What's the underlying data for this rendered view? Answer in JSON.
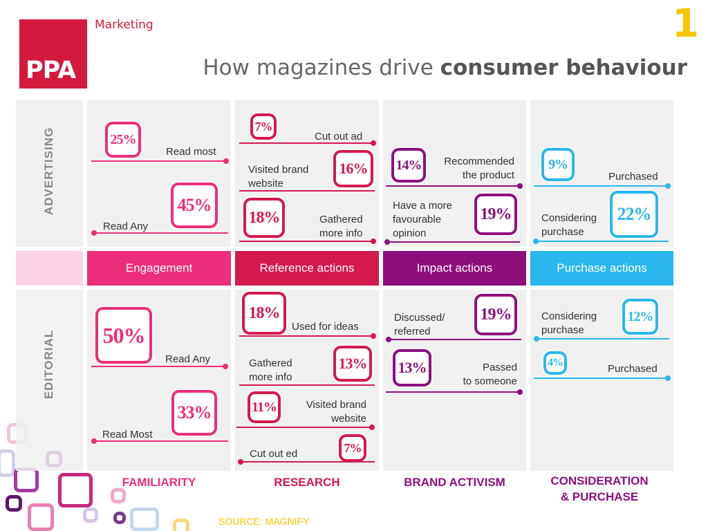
{
  "header": {
    "logo_text": "PPA",
    "subtitle": "Marketing",
    "page_number": "1",
    "title_plain": "How magazines drive ",
    "title_bold": "consumer behaviour"
  },
  "rows": {
    "advertising": "ADVERTISING",
    "editorial": "EDITORIAL"
  },
  "bands": [
    {
      "label": "Engagement",
      "color": "#ec2e7b"
    },
    {
      "label": "Reference actions",
      "color": "#d3194d"
    },
    {
      "label": "Impact actions",
      "color": "#8d0f7d"
    },
    {
      "label": "Purchase actions",
      "color": "#29b6ec"
    }
  ],
  "columns": [
    {
      "label": "FAMILIARITY",
      "color": "#ec2e7b"
    },
    {
      "label": "RESEARCH",
      "color": "#d3194d"
    },
    {
      "label": "BRAND ACTIVISM",
      "color": "#8d0f7d"
    },
    {
      "label_line1": "CONSIDERATION",
      "label_line2": "& PURCHASE",
      "color": "#8d0f7d"
    }
  ],
  "advertising": {
    "familiarity": [
      {
        "pct": "25%",
        "label": "Read most"
      },
      {
        "pct": "45%",
        "label": "Read Any"
      }
    ],
    "research": [
      {
        "pct": "7%",
        "label": "Cut out ad"
      },
      {
        "pct": "16%",
        "label_line1": "Visited brand",
        "label_line2": "website"
      },
      {
        "pct": "18%",
        "label_line1": "Gathered",
        "label_line2": "more info"
      }
    ],
    "activism": [
      {
        "pct": "14%",
        "label_line1": "Recommended",
        "label_line2": "the product"
      },
      {
        "pct": "19%",
        "label_line1": "Have a more",
        "label_line2": "favourable",
        "label_line3": "opinion"
      }
    ],
    "purchase": [
      {
        "pct": "9%",
        "label": "Purchased"
      },
      {
        "pct": "22%",
        "label_line1": "Considering",
        "label_line2": "purchase"
      }
    ]
  },
  "editorial": {
    "familiarity": [
      {
        "pct": "50%",
        "label": "Read Any"
      },
      {
        "pct": "33%",
        "label": "Read Most"
      }
    ],
    "research": [
      {
        "pct": "18%",
        "label": "Used for ideas"
      },
      {
        "pct": "13%",
        "label_line1": "Gathered",
        "label_line2": "more info"
      },
      {
        "pct": "11%",
        "label_line1": "Visited brand",
        "label_line2": "website"
      },
      {
        "pct": "7%",
        "label": "Cut out ed"
      }
    ],
    "activism": [
      {
        "pct": "19%",
        "label_line1": "Discussed/",
        "label_line2": "referred"
      },
      {
        "pct": "13%",
        "label_line1": "Passed",
        "label_line2": "to someone"
      }
    ],
    "purchase": [
      {
        "pct": "12%",
        "label_line1": "Considering",
        "label_line2": "purchase"
      },
      {
        "pct": "4%",
        "label": "Purchased"
      }
    ]
  },
  "footer": {
    "source": "SOURCE: MAGNIFY"
  }
}
